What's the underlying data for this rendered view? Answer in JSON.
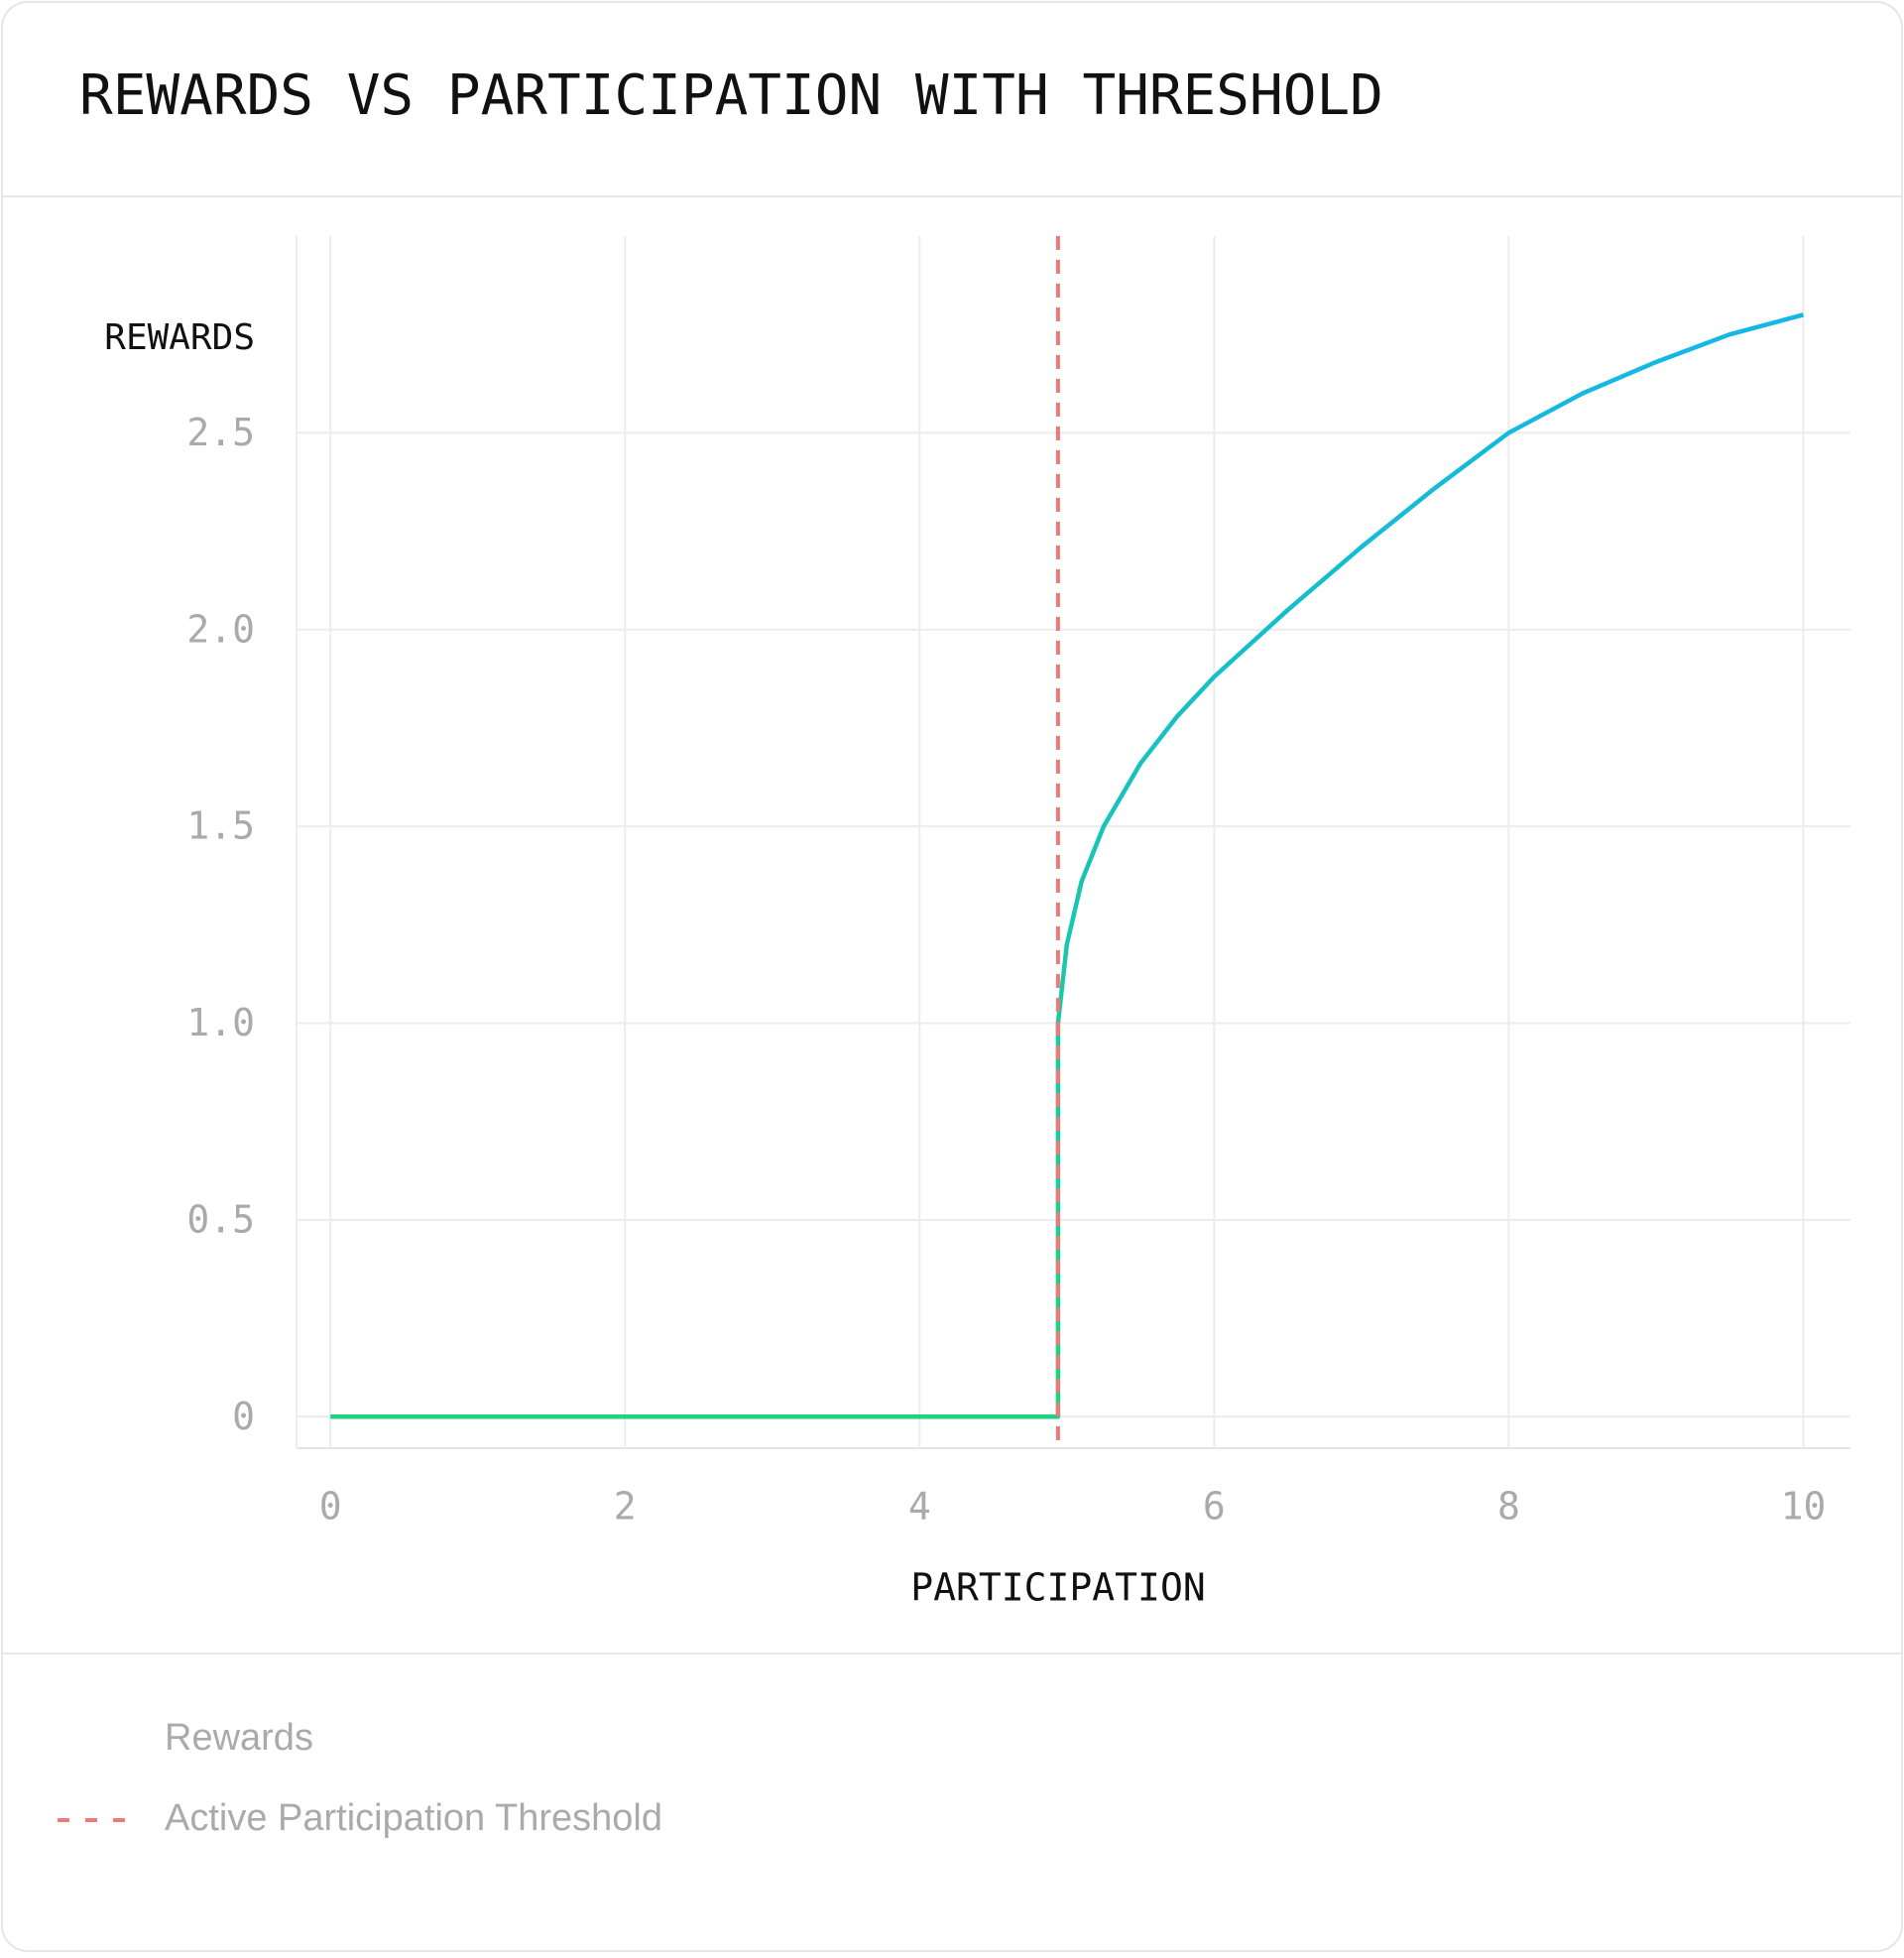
{
  "chart_data": {
    "type": "line",
    "title": "REWARDS VS PARTICIPATION WITH THRESHOLD",
    "xlabel": "PARTICIPATION",
    "ylabel": "REWARDS",
    "series": [
      {
        "name": "Rewards",
        "colors": [
          "#1ed47c",
          "#13b6ea"
        ],
        "x": [
          0,
          4.94,
          4.94,
          5.0,
          5.1,
          5.25,
          5.5,
          5.75,
          6,
          6.5,
          7,
          7.5,
          8,
          8.5,
          9,
          9.5,
          10
        ],
        "values": [
          0,
          0,
          1,
          1.2,
          1.36,
          1.5,
          1.66,
          1.78,
          1.88,
          2.05,
          2.21,
          2.36,
          2.5,
          2.6,
          2.68,
          2.75,
          2.8
        ]
      }
    ],
    "threshold": {
      "name": "Active Participation Threshold",
      "x": 4.94,
      "color": "#f07878",
      "dashed": true
    },
    "xlim": [
      -0.23,
      10.32
    ],
    "ylim": [
      -0.08,
      3.0
    ],
    "xticks": [
      0,
      2,
      4,
      6,
      8,
      10
    ],
    "yticks": [
      0,
      {
        "value": 0.5,
        "label": "0.5"
      },
      {
        "value": 1,
        "label": "1.0"
      },
      1.5,
      {
        "value": 2,
        "label": "2.0"
      },
      2.5
    ],
    "grid": true
  }
}
